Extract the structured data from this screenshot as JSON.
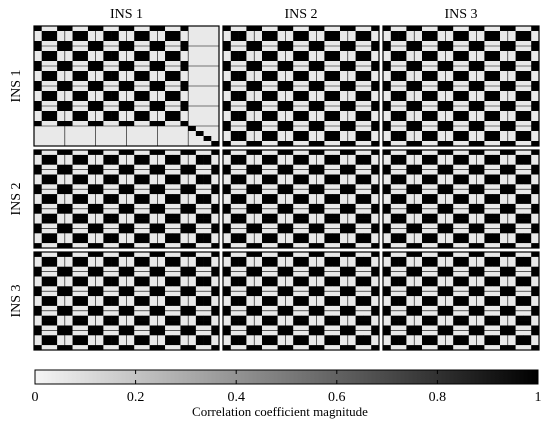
{
  "chart_data": {
    "type": "heatmap",
    "title": "",
    "column_labels": [
      "INS 1",
      "INS 2",
      "INS 3"
    ],
    "row_labels": [
      "INS 1",
      "INS 2",
      "INS 3"
    ],
    "colorbar": {
      "label": "Correlation coefficient magnitude",
      "range": [
        0,
        1
      ],
      "ticks": [
        0,
        0.2,
        0.4,
        0.6,
        0.8,
        1
      ],
      "tick_labels": [
        "0",
        "0.2",
        "0.4",
        "0.6",
        "0.8",
        "1"
      ],
      "colormap": [
        "#f5f5f5",
        "#000000"
      ]
    },
    "block_grid": {
      "row_block_sizes": [
        24,
        20,
        20
      ],
      "col_block_sizes": [
        24,
        20,
        20
      ],
      "grid_line_every": 4,
      "pattern": "each 4x4 sub-block: checkerboard of pairs of cells with magnitude ~1 (black) and ~0.05 (light gray); INS1-INS1 diagonal block additionally has a light gray region with a short black diagonal band in its last 4 rows/cols",
      "high_value": 1.0,
      "low_value": 0.05
    }
  }
}
